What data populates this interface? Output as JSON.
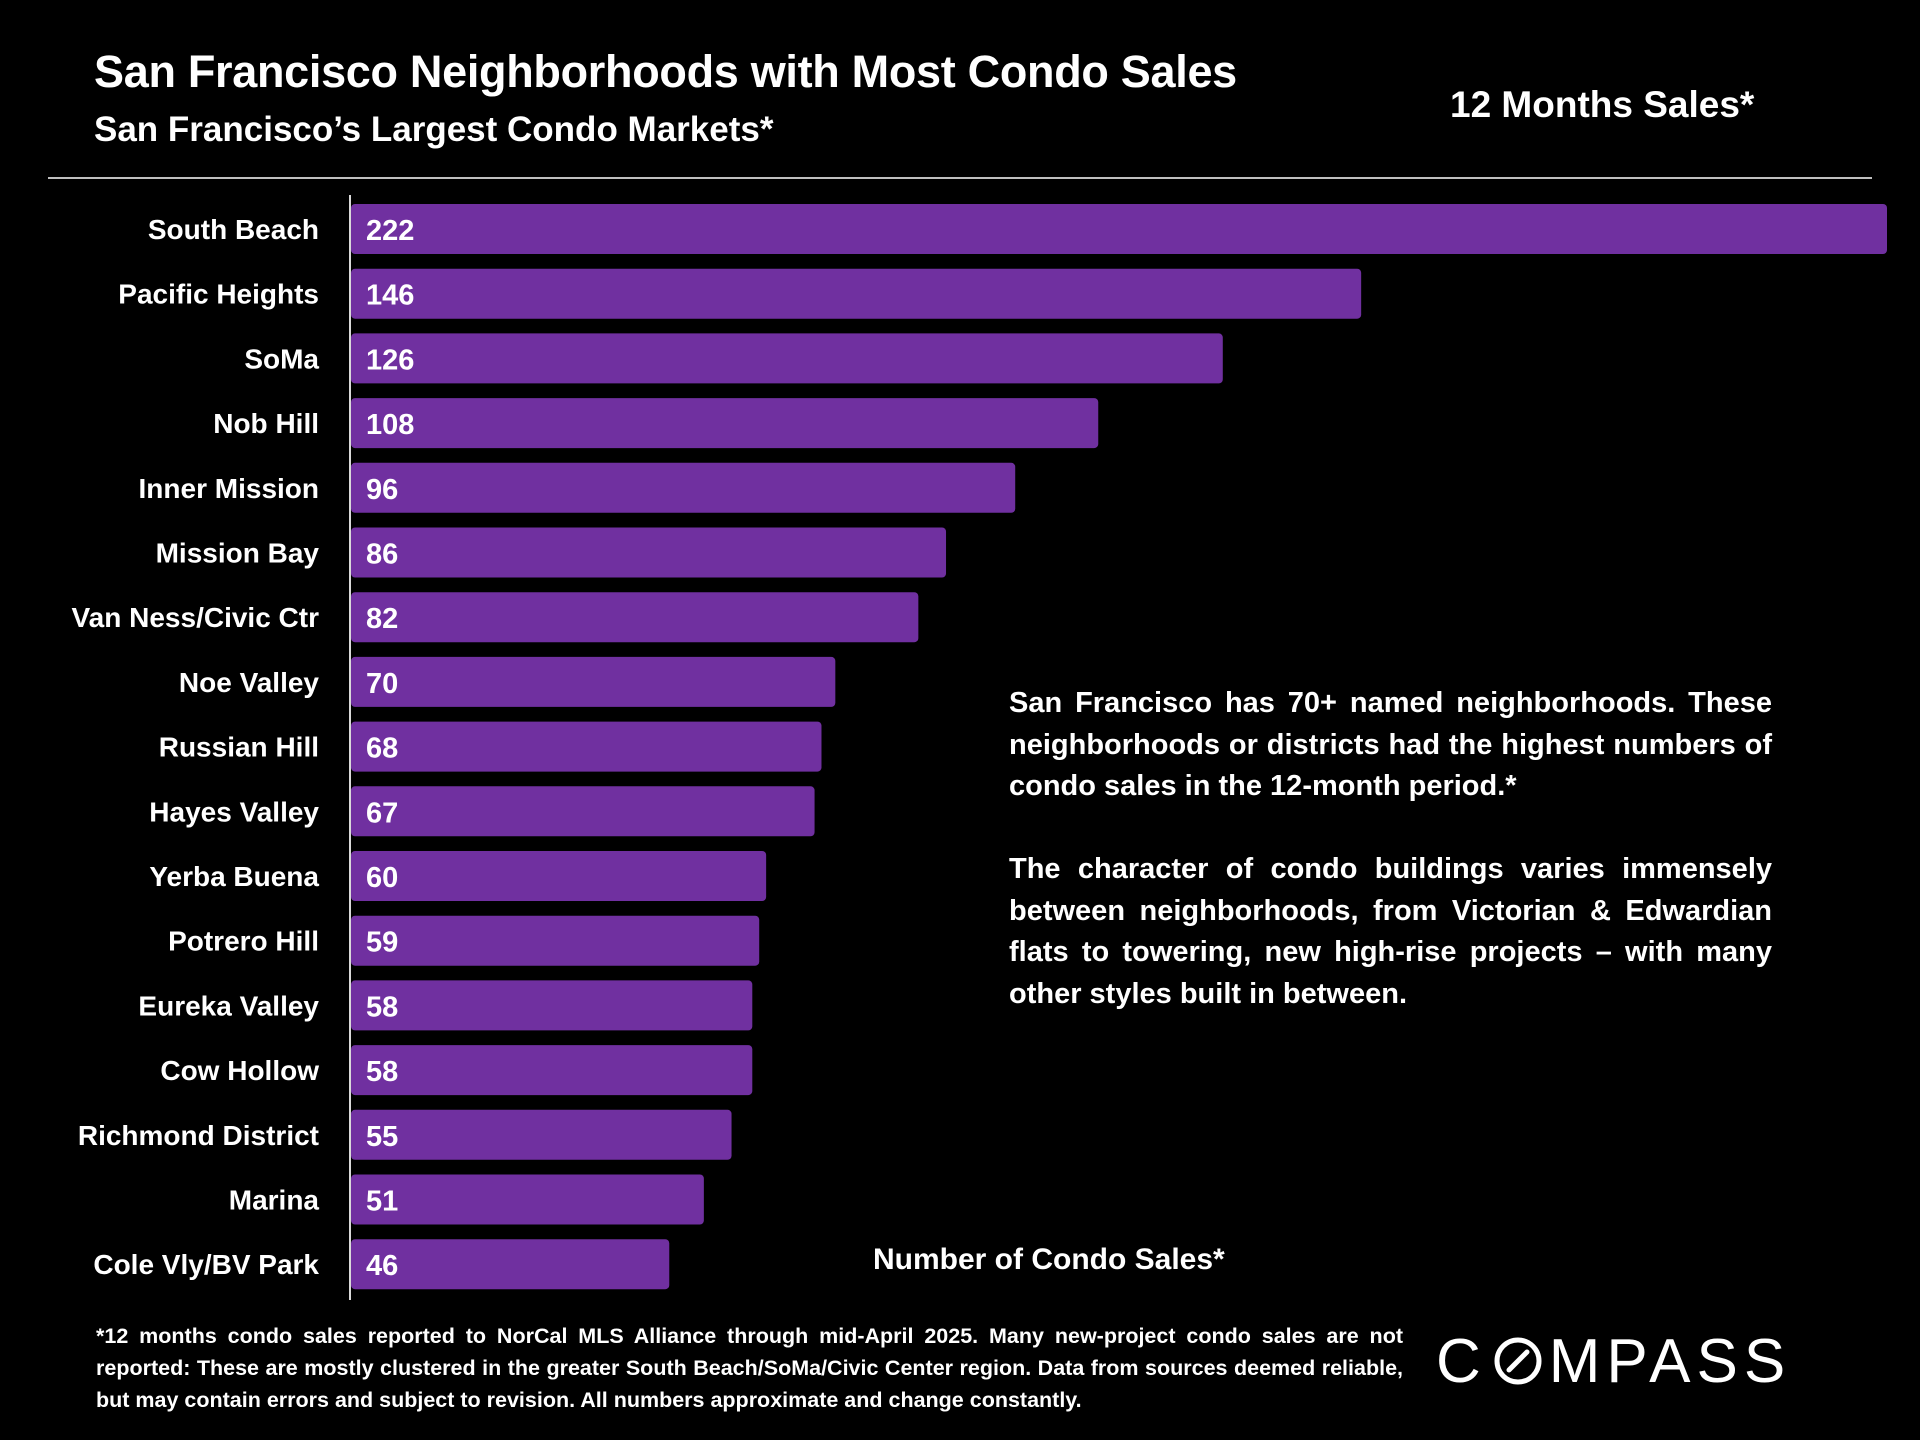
{
  "header": {
    "title": "San Francisco Neighborhoods with Most Condo Sales",
    "subtitle": "San Francisco’s Largest Condo Markets*",
    "period": "12 Months Sales*"
  },
  "notes": [
    "San Francisco has 70+ named neighborhoods. These neighborhoods or districts had the highest numbers of condo sales in the 12-month period.*",
    "The character of condo buildings varies immensely between neighborhoods, from Victorian & Edwardian flats to towering, new high-rise projects – with many other styles built in between."
  ],
  "footnote": "*12 months condo sales reported to NorCal MLS Alliance through mid-April 2025. Many new-project condo sales are not reported:  These are mostly clustered in the greater South Beach/SoMa/Civic Center region. Data from sources deemed reliable, but may contain errors and subject to revision. All numbers approximate and change constantly.",
  "logo": {
    "left": "C",
    "right": "MPASS"
  },
  "colors": {
    "background": "#000000",
    "bar": "#7030A0",
    "text": "#FFFFFF",
    "rule": "#BFBFBF"
  },
  "chart_data": {
    "type": "bar",
    "orientation": "horizontal",
    "xlabel": "Number of Condo Sales*",
    "categories": [
      "South Beach",
      "Pacific Heights",
      "SoMa",
      "Nob Hill",
      "Inner Mission",
      "Mission Bay",
      "Van Ness/Civic Ctr",
      "Noe Valley",
      "Russian Hill",
      "Hayes Valley",
      "Yerba Buena",
      "Potrero Hill",
      "Eureka Valley",
      "Cow Hollow",
      "Richmond District",
      "Marina",
      "Cole Vly/BV Park"
    ],
    "values": [
      222,
      146,
      126,
      108,
      96,
      86,
      82,
      70,
      68,
      67,
      60,
      59,
      58,
      58,
      55,
      51,
      46
    ],
    "xlim": [
      0,
      222
    ],
    "data_labels": true,
    "grid": false,
    "legend": "none"
  }
}
